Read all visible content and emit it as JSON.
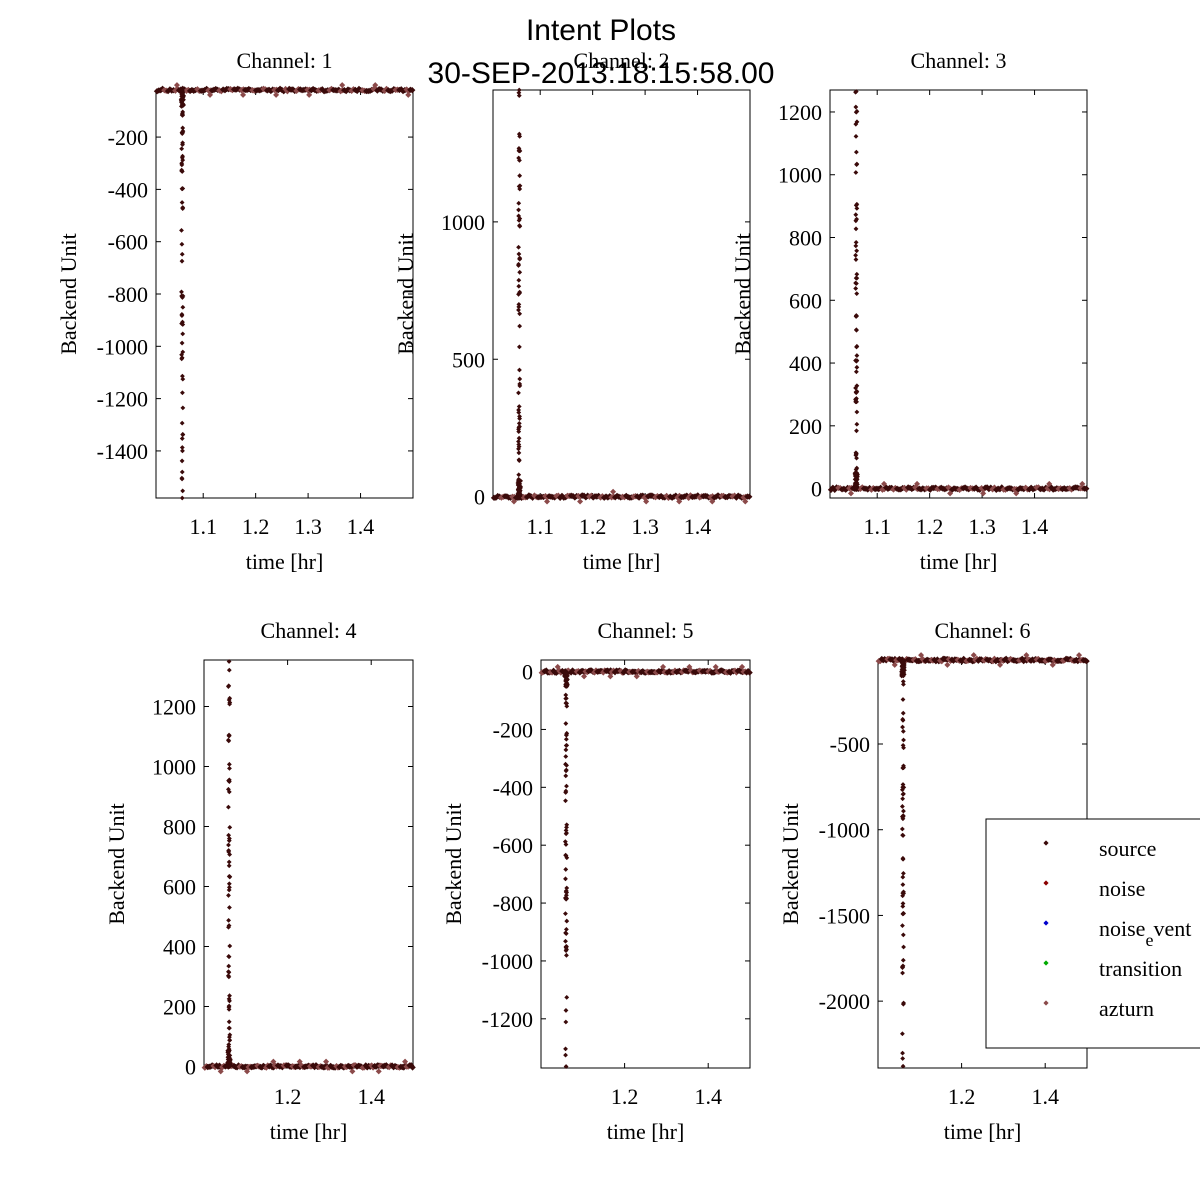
{
  "figure": {
    "suptitle_line1": "Intent Plots",
    "suptitle_line2": "30-SEP-2013:18:15:58.00"
  },
  "colors": {
    "source": "#3a0a0a",
    "noise": "#8b0000",
    "noise_event": "#0000cc",
    "transition": "#00aa00",
    "azturn": "#8b4a4a",
    "axis": "#000000"
  },
  "legend": {
    "entries": [
      {
        "key": "source",
        "label_main": "source",
        "label_sub": "",
        "label_tail": ""
      },
      {
        "key": "noise",
        "label_main": "noise",
        "label_sub": "",
        "label_tail": ""
      },
      {
        "key": "noise_event",
        "label_main": "noise",
        "label_sub": "e",
        "label_tail": "vent"
      },
      {
        "key": "transition",
        "label_main": "transition",
        "label_sub": "",
        "label_tail": ""
      },
      {
        "key": "azturn",
        "label_main": "azturn",
        "label_sub": "",
        "label_tail": ""
      }
    ]
  },
  "chart_data": [
    {
      "type": "scatter",
      "title": "Channel: 1",
      "xlabel": "time [hr]",
      "ylabel": "Backend Unit",
      "xlim": [
        1.01,
        1.5
      ],
      "ylim": [
        -1580,
        -20
      ],
      "xticks": [
        1.1,
        1.2,
        1.3,
        1.4
      ],
      "xtick_labels": [
        "1.1",
        "1.2",
        "1.3",
        "1.4"
      ],
      "yticks": [
        -200,
        -400,
        -600,
        -800,
        -1000,
        -1200,
        -1400
      ],
      "ytick_labels": [
        "-200",
        "-400",
        "-600",
        "-800",
        "-1000",
        "-1200",
        "-1400"
      ],
      "baseline": -20,
      "spike_x": 1.06,
      "spike_extreme": -1580
    },
    {
      "type": "scatter",
      "title": "Channel: 2",
      "xlabel": "time [hr]",
      "ylabel": "Backend Unit",
      "xlim": [
        1.01,
        1.5
      ],
      "ylim": [
        -5,
        1480
      ],
      "xticks": [
        1.1,
        1.2,
        1.3,
        1.4
      ],
      "xtick_labels": [
        "1.1",
        "1.2",
        "1.3",
        "1.4"
      ],
      "yticks": [
        0,
        500,
        1000
      ],
      "ytick_labels": [
        "0",
        "500",
        "1000"
      ],
      "baseline": 0,
      "spike_x": 1.06,
      "spike_extreme": 1480
    },
    {
      "type": "scatter",
      "title": "Channel: 3",
      "xlabel": "time [hr]",
      "ylabel": "Backend Unit",
      "xlim": [
        1.01,
        1.5
      ],
      "ylim": [
        -30,
        1270
      ],
      "xticks": [
        1.1,
        1.2,
        1.3,
        1.4
      ],
      "xtick_labels": [
        "1.1",
        "1.2",
        "1.3",
        "1.4"
      ],
      "yticks": [
        0,
        200,
        400,
        600,
        800,
        1000,
        1200
      ],
      "ytick_labels": [
        "0",
        "200",
        "400",
        "600",
        "800",
        "1000",
        "1200"
      ],
      "baseline": 0,
      "spike_x": 1.06,
      "spike_extreme": 1265
    },
    {
      "type": "scatter",
      "title": "Channel: 4",
      "xlabel": "time [hr]",
      "ylabel": "Backend Unit",
      "xlim": [
        1.0,
        1.5
      ],
      "ylim": [
        -5,
        1355
      ],
      "xticks": [
        1.2,
        1.4
      ],
      "xtick_labels": [
        "1.2",
        "1.4"
      ],
      "yticks": [
        0,
        200,
        400,
        600,
        800,
        1000,
        1200
      ],
      "ytick_labels": [
        "0",
        "200",
        "400",
        "600",
        "800",
        "1000",
        "1200"
      ],
      "baseline": 0,
      "spike_x": 1.06,
      "spike_extreme": 1350
    },
    {
      "type": "scatter",
      "title": "Channel: 5",
      "xlabel": "time [hr]",
      "ylabel": "Backend Unit",
      "xlim": [
        1.0,
        1.5
      ],
      "ylim": [
        -1370,
        40
      ],
      "xticks": [
        1.2,
        1.4
      ],
      "xtick_labels": [
        "1.2",
        "1.4"
      ],
      "yticks": [
        0,
        -200,
        -400,
        -600,
        -800,
        -1000,
        -1200
      ],
      "ytick_labels": [
        "0",
        "-200",
        "-400",
        "-600",
        "-800",
        "-1000",
        "-1200"
      ],
      "baseline": 0,
      "spike_x": 1.06,
      "spike_extreme": -1365
    },
    {
      "type": "scatter",
      "title": "Channel: 6",
      "xlabel": "time [hr]",
      "ylabel": "Backend Unit",
      "xlim": [
        1.0,
        1.5
      ],
      "ylim": [
        -2390,
        -10
      ],
      "xticks": [
        1.2,
        1.4
      ],
      "xtick_labels": [
        "1.2",
        "1.4"
      ],
      "yticks": [
        -500,
        -1000,
        -1500,
        -2000
      ],
      "ytick_labels": [
        "-500",
        "-1000",
        "-1500",
        "-2000"
      ],
      "baseline": -10,
      "spike_x": 1.06,
      "spike_extreme": -2380
    }
  ]
}
